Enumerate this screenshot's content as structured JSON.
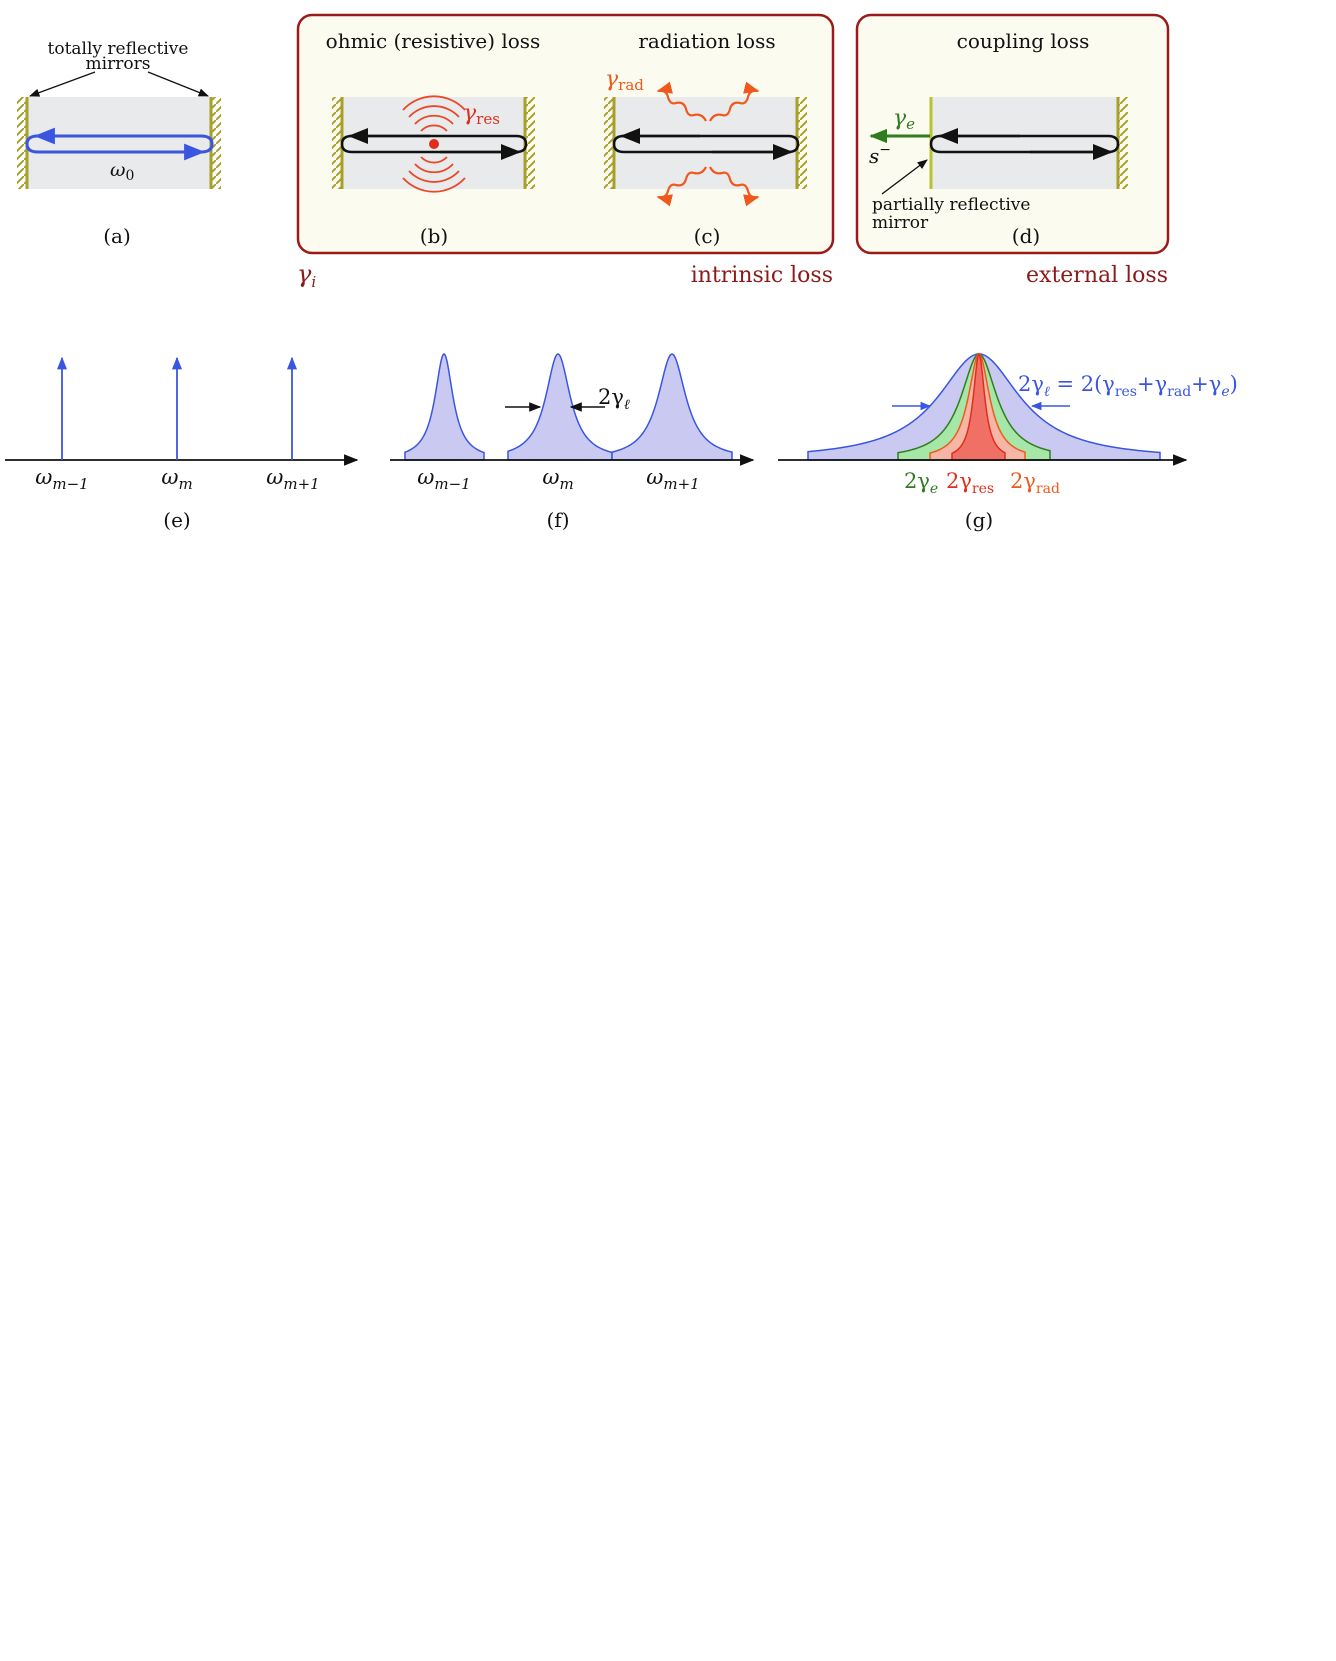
{
  "panels": {
    "a": {
      "caption": "(a)",
      "mirror_label_line1": "totally reflective",
      "mirror_label_line2": "mirrors",
      "omega": "ω",
      "omega_sub": "0"
    },
    "b": {
      "caption": "(b)",
      "title": "ohmic (resistive) loss",
      "gamma": "γ",
      "gamma_sub": "res"
    },
    "c": {
      "caption": "(c)",
      "title": "radiation loss",
      "gamma": "γ",
      "gamma_sub": "rad"
    },
    "d": {
      "caption": "(d)",
      "title": "coupling loss",
      "gamma": "γ",
      "gamma_sub": "e",
      "s_minus": "s",
      "s_minus_sup": "−",
      "partial_line1": "partially reflective",
      "partial_line2": "mirror"
    },
    "intrinsic": {
      "gamma": "γ",
      "gamma_sub": "i",
      "label": "intrinsic loss"
    },
    "external": {
      "label": "external loss"
    },
    "e": {
      "caption": "(e)"
    },
    "f": {
      "caption": "(f)",
      "width_label": "2γ",
      "width_sub": "ℓ"
    },
    "g": {
      "caption": "(g)"
    },
    "omega_labels": [
      {
        "base": "ω",
        "sub": "m−1"
      },
      {
        "base": "ω",
        "sub": "m"
      },
      {
        "base": "ω",
        "sub": "m+1"
      }
    ],
    "g_legend": [
      {
        "prefix": "2γ",
        "sub": "e"
      },
      {
        "prefix": "2γ",
        "sub": "res"
      },
      {
        "prefix": "2γ",
        "sub": "rad"
      }
    ],
    "g_formula": {
      "lhs": "2γ",
      "lhs_sub": "ℓ",
      "eq": " = 2(γ",
      "s1": "res",
      "plus1": "+γ",
      "s2": "rad",
      "plus2": "+γ",
      "s3": "e",
      "close": ")"
    }
  },
  "colors": {
    "mirror": "#a8a02a",
    "cavity": "#e9eaec",
    "box_fill": "#fbfbf0",
    "box_border": "#9b1b1b",
    "blue": "#3a56e0",
    "red": "#e02e1e",
    "orange": "#ef5a1c",
    "green": "#2f7d1f",
    "lorentz_fill": "#c9c9f2"
  }
}
